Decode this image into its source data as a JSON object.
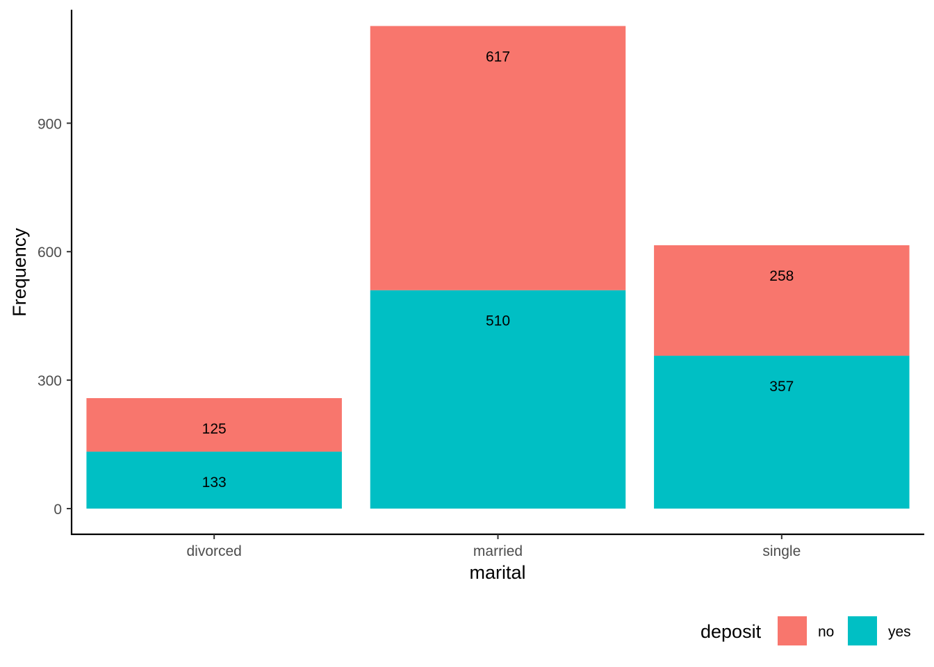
{
  "chart_data": {
    "type": "bar",
    "stacked": true,
    "categories": [
      "divorced",
      "married",
      "single"
    ],
    "series": [
      {
        "name": "no",
        "values": [
          125,
          617,
          258
        ],
        "color": "#F8766D"
      },
      {
        "name": "yes",
        "values": [
          133,
          510,
          357
        ],
        "color": "#00BFC4"
      }
    ],
    "xlabel": "marital",
    "ylabel": "Frequency",
    "ylim": [
      -60,
      1165
    ],
    "yticks": [
      0,
      300,
      600,
      900
    ],
    "legend": {
      "title": "deposit",
      "position": "bottom-right",
      "orientation": "horizontal"
    },
    "grid": false
  }
}
